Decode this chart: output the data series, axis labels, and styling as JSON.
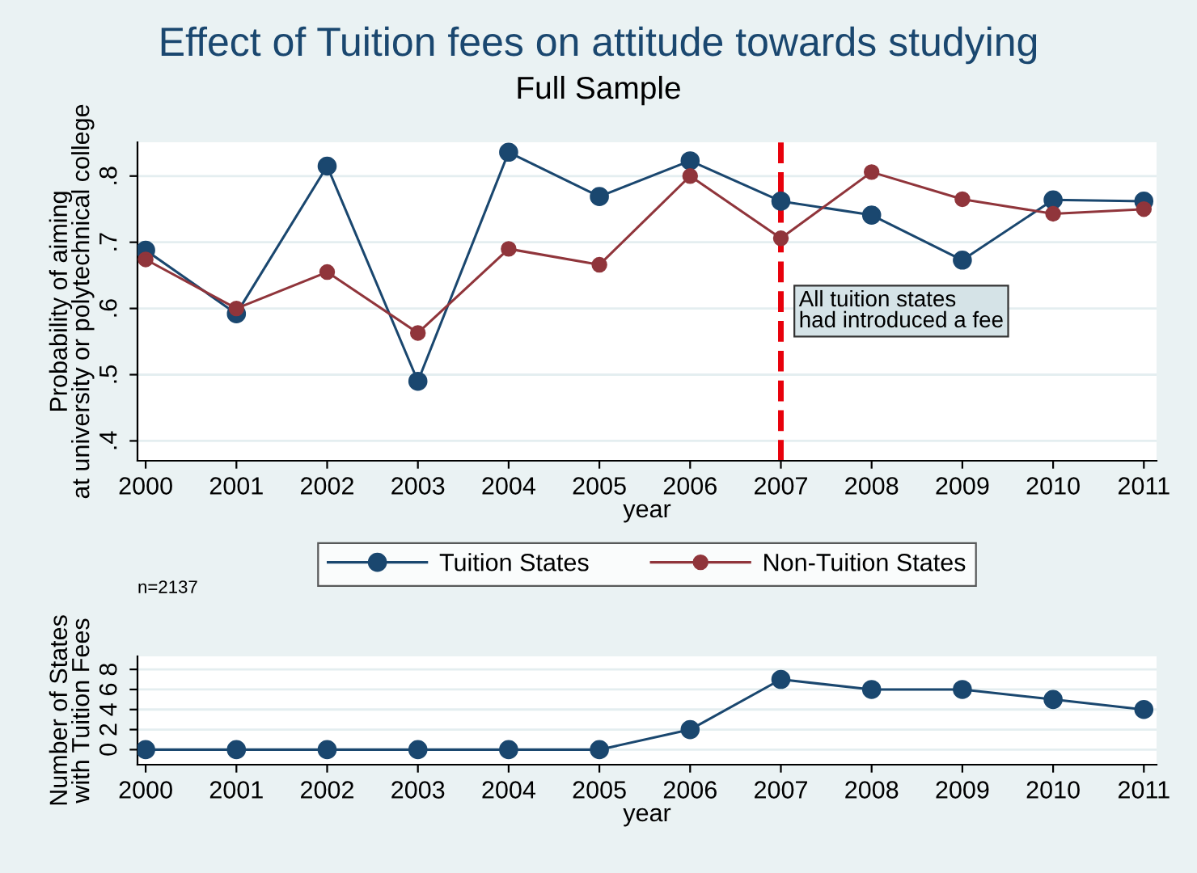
{
  "chart_data": [
    {
      "type": "line",
      "title": "Effect of Tuition fees on attitude towards studying",
      "subtitle": "Full Sample",
      "xlabel": "year",
      "ylabel": "Probability of aiming\nat university or polytechnical college",
      "x": [
        2000,
        2001,
        2002,
        2003,
        2004,
        2005,
        2006,
        2007,
        2008,
        2009,
        2010,
        2011
      ],
      "series": [
        {
          "name": "Tuition States",
          "color": "#1a476f",
          "values": [
            0.688,
            0.592,
            0.815,
            0.49,
            0.836,
            0.769,
            0.823,
            0.762,
            0.741,
            0.673,
            0.764,
            0.762
          ]
        },
        {
          "name": "Non-Tuition States",
          "color": "#90353b",
          "values": [
            0.674,
            0.6,
            0.655,
            0.563,
            0.69,
            0.666,
            0.8,
            0.706,
            0.806,
            0.765,
            0.743,
            0.75
          ]
        }
      ],
      "xlim": [
        1999.91,
        2011.14
      ],
      "xticks": [
        2000,
        2001,
        2002,
        2003,
        2004,
        2005,
        2006,
        2007,
        2008,
        2009,
        2010,
        2011
      ],
      "ylim": [
        0.37,
        0.851
      ],
      "yticks": [
        {
          "value": 0.4,
          "label": ".4"
        },
        {
          "value": 0.5,
          "label": ".5"
        },
        {
          "value": 0.6,
          "label": ".6"
        },
        {
          "value": 0.7,
          "label": ".7"
        },
        {
          "value": 0.8,
          "label": ".8"
        }
      ],
      "ref_lines": [
        {
          "axis": "x",
          "value": 2007,
          "label": "All tuition states\nhad introduced a fee",
          "color": "#e8000b",
          "line_style": "dashed"
        }
      ],
      "grid": "y",
      "legend": "bottom",
      "marker": "circle",
      "line_style": "solid"
    },
    {
      "type": "line",
      "xlabel": "year",
      "ylabel": "Number of States\nwith Tuition Fees",
      "annotations": [
        "n=2137"
      ],
      "x": [
        2000,
        2001,
        2002,
        2003,
        2004,
        2005,
        2006,
        2007,
        2008,
        2009,
        2010,
        2011
      ],
      "series": [
        {
          "color": "#1a476f",
          "values": [
            0,
            0,
            0,
            0,
            0,
            0,
            2,
            7,
            6,
            6,
            5,
            4
          ]
        }
      ],
      "xlim": [
        1999.91,
        2011.14
      ],
      "xticks": [
        2000,
        2001,
        2002,
        2003,
        2004,
        2005,
        2006,
        2007,
        2008,
        2009,
        2010,
        2011
      ],
      "ylim": [
        -1.5,
        9.3
      ],
      "yticks": [
        0,
        2,
        4,
        6,
        8
      ],
      "grid": "y",
      "marker": "circle",
      "line_style": "solid"
    }
  ]
}
